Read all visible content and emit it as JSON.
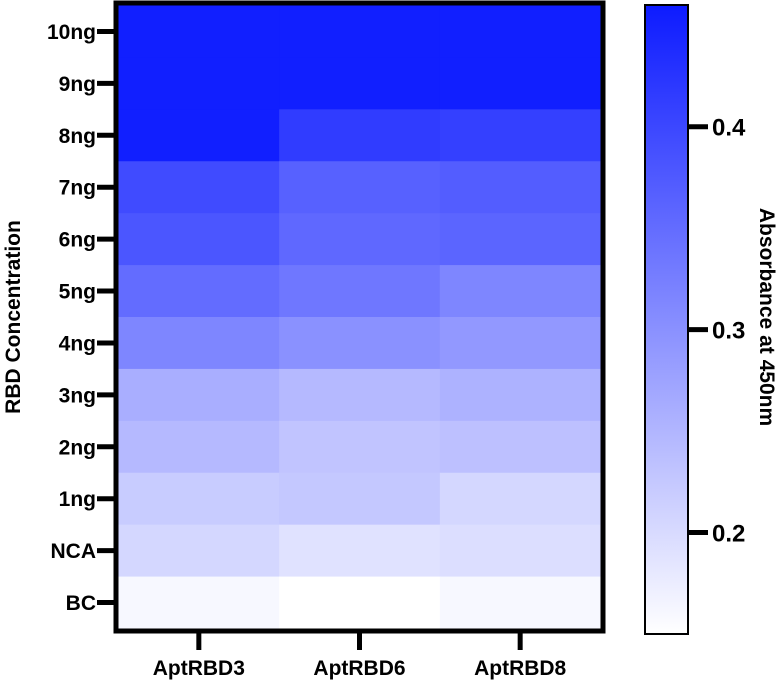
{
  "chart_data": {
    "type": "heatmap",
    "columns": [
      "AptRBD3",
      "AptRBD6",
      "AptRBD8"
    ],
    "rows": [
      "10ng",
      "9ng",
      "8ng",
      "7ng",
      "6ng",
      "5ng",
      "4ng",
      "3ng",
      "2ng",
      "1ng",
      "NCA",
      "BC"
    ],
    "values": [
      [
        0.455,
        0.455,
        0.455
      ],
      [
        0.455,
        0.455,
        0.455
      ],
      [
        0.455,
        0.415,
        0.41
      ],
      [
        0.395,
        0.365,
        0.37
      ],
      [
        0.38,
        0.355,
        0.36
      ],
      [
        0.35,
        0.335,
        0.315
      ],
      [
        0.315,
        0.3,
        0.29
      ],
      [
        0.26,
        0.245,
        0.255
      ],
      [
        0.245,
        0.23,
        0.235
      ],
      [
        0.22,
        0.225,
        0.205
      ],
      [
        0.205,
        0.19,
        0.195
      ],
      [
        0.16,
        0.15,
        0.16
      ]
    ],
    "ylabel": "RBD Concentration",
    "colorbar": {
      "label": "Absorbance at 450nm",
      "min": 0.15,
      "max": 0.46,
      "ticks": [
        0.2,
        0.3,
        0.4
      ],
      "tick_labels": [
        "0.2",
        "0.3",
        "0.4"
      ],
      "low_color": "#ffffff",
      "high_color": "#0d1bff"
    }
  }
}
